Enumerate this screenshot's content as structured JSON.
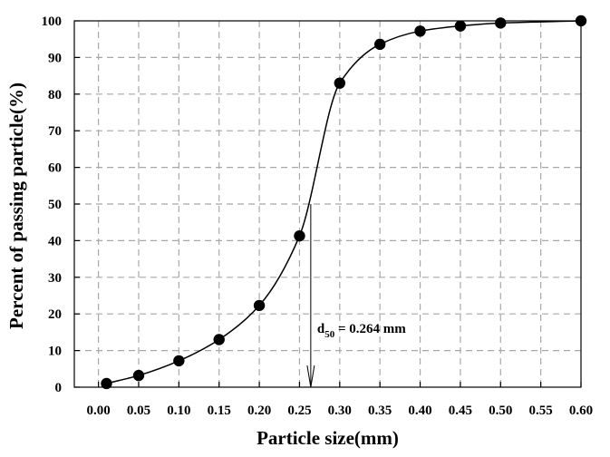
{
  "chart_data": {
    "type": "line",
    "title": "",
    "xlabel": "Particle size(mm)",
    "ylabel": "Percent of passing particle(%)",
    "xlim": [
      -0.03,
      0.6
    ],
    "ylim": [
      0,
      100
    ],
    "x_ticks": [
      0.0,
      0.05,
      0.1,
      0.15,
      0.2,
      0.25,
      0.3,
      0.35,
      0.4,
      0.45,
      0.5,
      0.55,
      0.6
    ],
    "x_tick_labels": [
      "0.00",
      "0.05",
      "0.10",
      "0.15",
      "0.20",
      "0.25",
      "0.30",
      "0.35",
      "0.40",
      "0.45",
      "0.50",
      "0.55",
      "0.60"
    ],
    "y_ticks": [
      0,
      10,
      20,
      30,
      40,
      50,
      60,
      70,
      80,
      90,
      100
    ],
    "y_tick_labels": [
      "0",
      "10",
      "20",
      "30",
      "40",
      "50",
      "60",
      "70",
      "80",
      "90",
      "100"
    ],
    "grid": true,
    "series": [
      {
        "x": [
          0.01,
          0.05,
          0.1,
          0.15,
          0.2,
          0.25,
          0.3,
          0.35,
          0.4,
          0.45,
          0.5,
          0.6
        ],
        "y": [
          1,
          3.2,
          7.2,
          13,
          22.3,
          41.3,
          83,
          93.6,
          97.2,
          98.6,
          99.4,
          100
        ],
        "marker": "circle",
        "color": "#000000"
      }
    ],
    "annotations": [
      {
        "label_main": "d",
        "label_sub": "50",
        "label_rest": " = 0.264 mm",
        "x": 0.264,
        "y_from": 50,
        "y_to": 0
      }
    ]
  }
}
